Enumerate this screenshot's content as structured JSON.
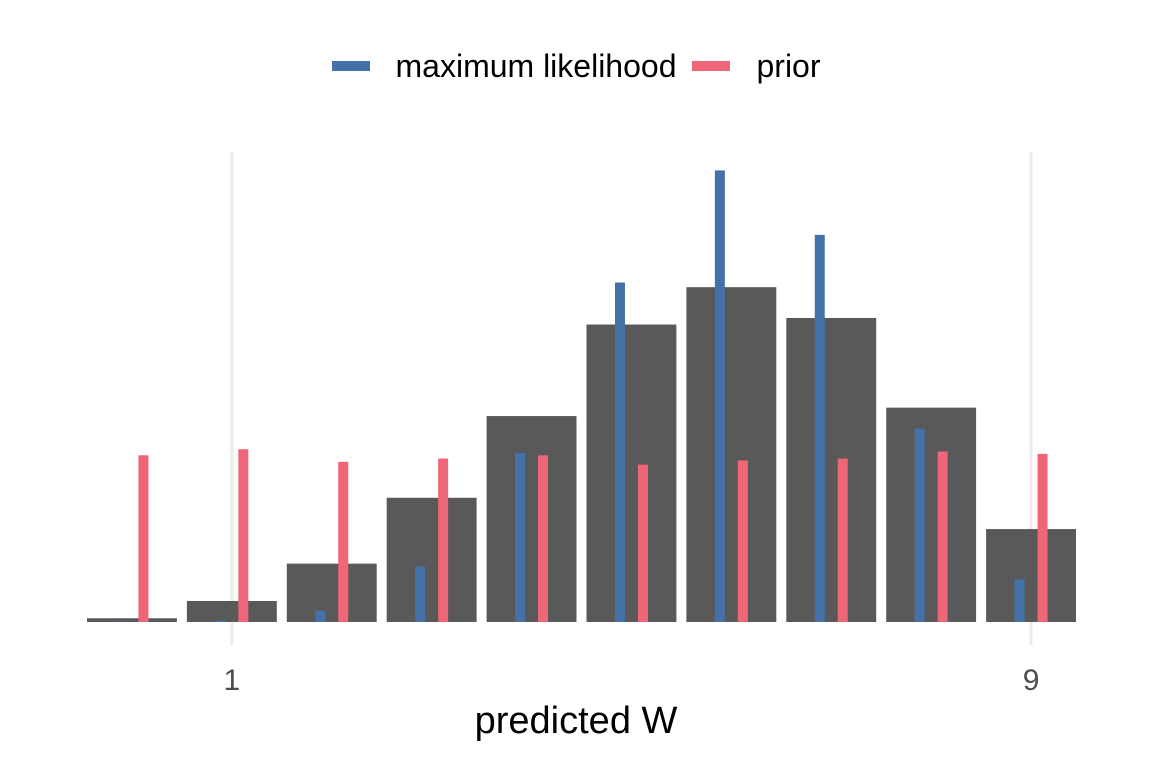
{
  "legend": {
    "items": [
      {
        "label": "maximum likelihood",
        "color": "#4472a8"
      },
      {
        "label": "prior",
        "color": "#ee6677"
      }
    ]
  },
  "colors": {
    "posterior_bar": "#595959",
    "grid": "#ebebeb",
    "tick_text": "#4d4d4d"
  },
  "chart_data": {
    "type": "bar",
    "x": [
      0,
      1,
      2,
      3,
      4,
      5,
      6,
      7,
      8,
      9
    ],
    "xlabel": "predicted W",
    "ylabel": "",
    "xticks": [
      1,
      9
    ],
    "xtick_labels": [
      "1",
      "9"
    ],
    "xlim": [
      -0.5,
      9.5
    ],
    "ylim": [
      0,
      1
    ],
    "grid": "vertical major lines at x ticks only",
    "legend_position": "top-center",
    "series": [
      {
        "name": "",
        "role": "posterior predictive",
        "color": "#595959",
        "values": [
          0.008,
          0.045,
          0.125,
          0.266,
          0.441,
          0.637,
          0.717,
          0.651,
          0.459,
          0.199
        ]
      },
      {
        "name": "maximum likelihood",
        "color": "#4472a8",
        "values": [
          0.0,
          0.003,
          0.024,
          0.119,
          0.362,
          0.727,
          0.967,
          0.829,
          0.414,
          0.091
        ]
      },
      {
        "name": "prior",
        "color": "#ee6677",
        "values": [
          0.357,
          0.37,
          0.343,
          0.35,
          0.357,
          0.337,
          0.346,
          0.35,
          0.365,
          0.36
        ]
      }
    ]
  }
}
